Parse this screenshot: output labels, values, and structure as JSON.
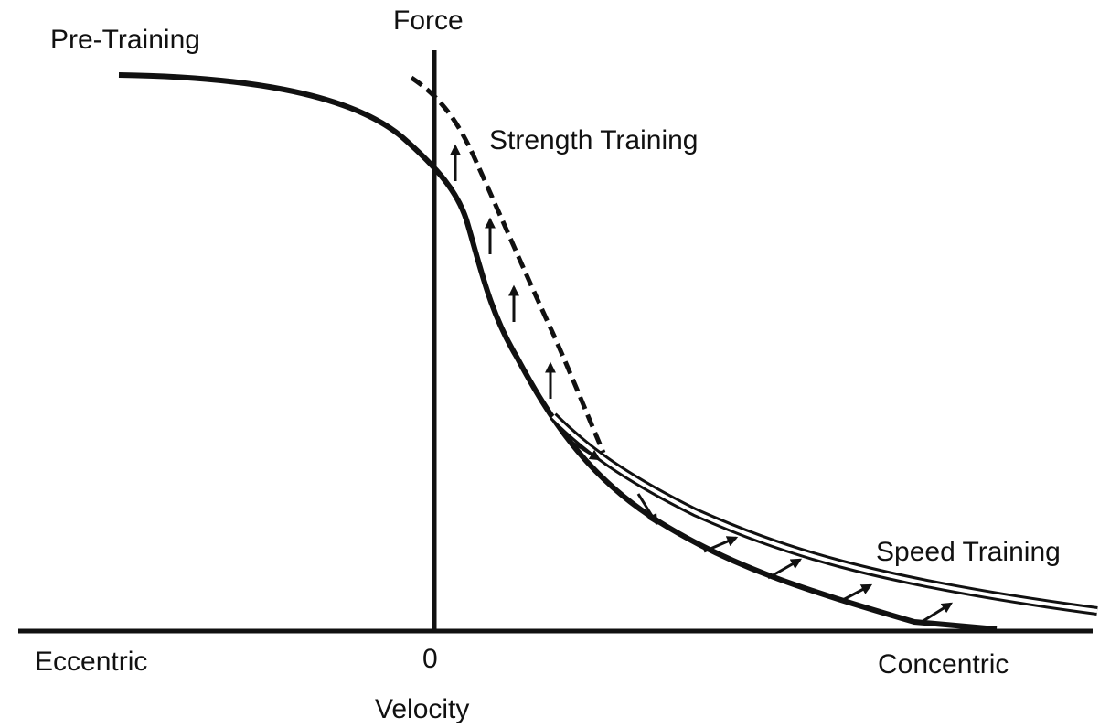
{
  "labels": {
    "pre_training": "Pre-Training",
    "force": "Force",
    "strength_training": "Strength Training",
    "speed_training": "Speed Training",
    "eccentric": "Eccentric",
    "zero": "0",
    "concentric": "Concentric",
    "velocity": "Velocity"
  }
}
